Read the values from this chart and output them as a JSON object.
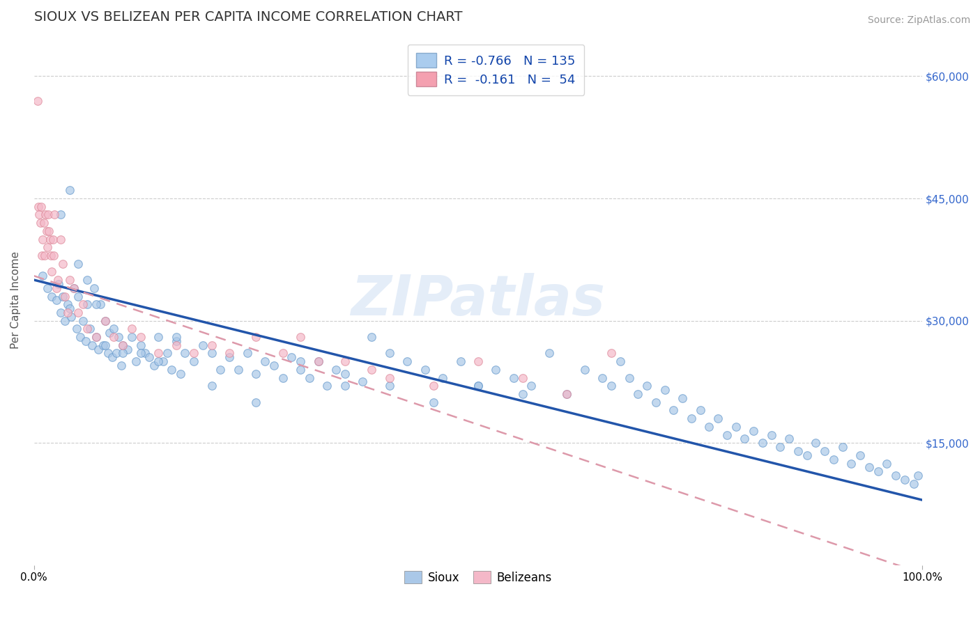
{
  "title": "SIOUX VS BELIZEAN PER CAPITA INCOME CORRELATION CHART",
  "source_text": "Source: ZipAtlas.com",
  "ylabel": "Per Capita Income",
  "xlim": [
    0.0,
    100.0
  ],
  "ylim": [
    0,
    65000
  ],
  "yticks": [
    15000,
    30000,
    45000,
    60000
  ],
  "background_color": "#ffffff",
  "grid_color": "#cccccc",
  "sioux_color": "#aac8e8",
  "sioux_edge": "#6699cc",
  "belizean_color": "#f4b8c8",
  "belizean_edge": "#dd8899",
  "sioux_R": -0.766,
  "sioux_N": 135,
  "belizean_R": -0.161,
  "belizean_N": 54,
  "legend_sioux_label": "R = -0.766   N = 135",
  "legend_belizean_label": "R =  -0.161   N =  54",
  "sioux_x": [
    1.0,
    1.5,
    2.0,
    2.5,
    2.8,
    3.0,
    3.2,
    3.5,
    3.8,
    4.0,
    4.2,
    4.5,
    4.8,
    5.0,
    5.2,
    5.5,
    5.8,
    6.0,
    6.3,
    6.5,
    6.8,
    7.0,
    7.2,
    7.5,
    7.8,
    8.0,
    8.3,
    8.5,
    8.8,
    9.0,
    9.3,
    9.5,
    9.8,
    10.0,
    10.5,
    11.0,
    11.5,
    12.0,
    12.5,
    13.0,
    13.5,
    14.0,
    14.5,
    15.0,
    15.5,
    16.0,
    16.5,
    17.0,
    18.0,
    19.0,
    20.0,
    21.0,
    22.0,
    23.0,
    24.0,
    25.0,
    26.0,
    27.0,
    28.0,
    29.0,
    30.0,
    31.0,
    32.0,
    33.0,
    34.0,
    35.0,
    37.0,
    38.0,
    40.0,
    42.0,
    44.0,
    46.0,
    48.0,
    50.0,
    52.0,
    54.0,
    56.0,
    58.0,
    60.0,
    62.0,
    64.0,
    65.0,
    66.0,
    67.0,
    68.0,
    69.0,
    70.0,
    71.0,
    72.0,
    73.0,
    74.0,
    75.0,
    76.0,
    77.0,
    78.0,
    79.0,
    80.0,
    81.0,
    82.0,
    83.0,
    84.0,
    85.0,
    86.0,
    87.0,
    88.0,
    89.0,
    90.0,
    91.0,
    92.0,
    93.0,
    94.0,
    95.0,
    96.0,
    97.0,
    98.0,
    99.0,
    99.5,
    3.0,
    4.0,
    5.0,
    6.0,
    7.0,
    8.0,
    10.0,
    12.0,
    14.0,
    16.0,
    20.0,
    25.0,
    30.0,
    35.0,
    40.0,
    45.0,
    50.0,
    55.0
  ],
  "sioux_y": [
    35500,
    34000,
    33000,
    32500,
    34500,
    31000,
    33000,
    30000,
    32000,
    31500,
    30500,
    34000,
    29000,
    33000,
    28000,
    30000,
    27500,
    35000,
    29000,
    27000,
    34000,
    28000,
    26500,
    32000,
    27000,
    30000,
    26000,
    28500,
    25500,
    29000,
    26000,
    28000,
    24500,
    27000,
    26500,
    28000,
    25000,
    27000,
    26000,
    25500,
    24500,
    28000,
    25000,
    26000,
    24000,
    27500,
    23500,
    26000,
    25000,
    27000,
    26000,
    24000,
    25500,
    24000,
    26000,
    23500,
    25000,
    24500,
    23000,
    25500,
    24000,
    23000,
    25000,
    22000,
    24000,
    23500,
    22500,
    28000,
    26000,
    25000,
    24000,
    23000,
    25000,
    22000,
    24000,
    23000,
    22000,
    26000,
    21000,
    24000,
    23000,
    22000,
    25000,
    23000,
    21000,
    22000,
    20000,
    21500,
    19000,
    20500,
    18000,
    19000,
    17000,
    18000,
    16000,
    17000,
    15500,
    16500,
    15000,
    16000,
    14500,
    15500,
    14000,
    13500,
    15000,
    14000,
    13000,
    14500,
    12500,
    13500,
    12000,
    11500,
    12500,
    11000,
    10500,
    10000,
    11000,
    43000,
    46000,
    37000,
    32000,
    32000,
    27000,
    26000,
    26000,
    25000,
    28000,
    22000,
    20000,
    25000,
    22000,
    22000,
    20000,
    22000,
    21000
  ],
  "belizean_x": [
    0.4,
    0.5,
    0.6,
    0.7,
    0.8,
    0.9,
    1.0,
    1.1,
    1.2,
    1.3,
    1.4,
    1.5,
    1.6,
    1.7,
    1.8,
    1.9,
    2.0,
    2.1,
    2.2,
    2.3,
    2.5,
    2.7,
    3.0,
    3.2,
    3.5,
    3.8,
    4.0,
    4.5,
    5.0,
    5.5,
    6.0,
    7.0,
    8.0,
    9.0,
    10.0,
    11.0,
    12.0,
    14.0,
    16.0,
    18.0,
    20.0,
    22.0,
    25.0,
    28.0,
    30.0,
    32.0,
    35.0,
    38.0,
    40.0,
    45.0,
    50.0,
    55.0,
    60.0,
    65.0
  ],
  "belizean_y": [
    57000,
    44000,
    43000,
    42000,
    44000,
    38000,
    40000,
    42000,
    38000,
    43000,
    41000,
    39000,
    43000,
    41000,
    40000,
    38000,
    36000,
    40000,
    38000,
    43000,
    34000,
    35000,
    40000,
    37000,
    33000,
    31000,
    35000,
    34000,
    31000,
    32000,
    29000,
    28000,
    30000,
    28000,
    27000,
    29000,
    28000,
    26000,
    27000,
    26000,
    27000,
    26000,
    28000,
    26000,
    28000,
    25000,
    25000,
    24000,
    23000,
    22000,
    25000,
    23000,
    21000,
    26000
  ],
  "sioux_trendline_x": [
    0.0,
    100.0
  ],
  "sioux_trendline_y": [
    35000,
    8000
  ],
  "belizean_trendline_x": [
    0.0,
    100.0
  ],
  "belizean_trendline_y": [
    35500,
    -1000
  ],
  "legend_fontsize": 13,
  "title_fontsize": 14,
  "tick_fontsize": 11,
  "ylabel_fontsize": 11,
  "source_fontsize": 10,
  "legend_box_color_sioux": "#aaccee",
  "legend_box_color_belizean": "#f4a0b0",
  "footer_legend": [
    {
      "label": "Sioux",
      "color": "#aac8e8"
    },
    {
      "label": "Belizeans",
      "color": "#f4b8c8"
    }
  ]
}
